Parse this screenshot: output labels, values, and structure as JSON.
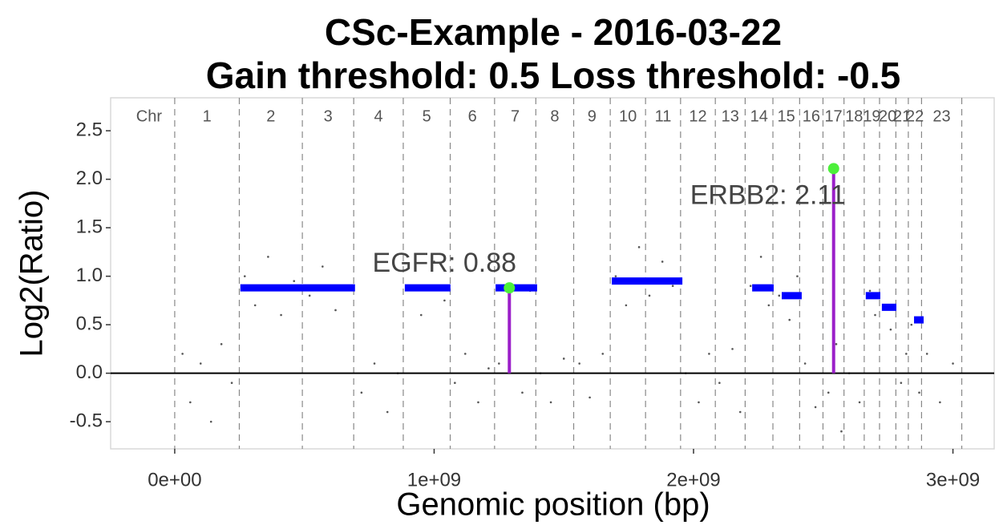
{
  "chart_data": {
    "type": "scatter",
    "title": "CSc-Example - 2016-03-22",
    "subtitle": "Gain threshold:  0.5  Loss threshold: -0.5",
    "x_label": "Genomic position (bp)",
    "y_label": "Log2(Ratio)",
    "xlim": [
      -247000000.0,
      3159000000.0
    ],
    "ylim": [
      -0.78,
      2.84
    ],
    "xticks": [
      {
        "value": 0,
        "label": "0e+00"
      },
      {
        "value": 1000000000.0,
        "label": "1e+09"
      },
      {
        "value": 2000000000.0,
        "label": "2e+09"
      },
      {
        "value": 3000000000.0,
        "label": "3e+09"
      }
    ],
    "yticks": [
      {
        "value": -0.5,
        "label": "-0.5"
      },
      {
        "value": 0,
        "label": "0.0"
      },
      0.5,
      {
        "value": 1,
        "label": "1.0"
      },
      1.5,
      {
        "value": 2,
        "label": "2.0"
      },
      2.5
    ],
    "reference_line": 0,
    "chromosomes": {
      "header": "Chr",
      "names": [
        "1",
        "2",
        "3",
        "4",
        "5",
        "6",
        "7",
        "8",
        "9",
        "10",
        "11",
        "12",
        "13",
        "14",
        "15",
        "16",
        "17",
        "18",
        "19",
        "20",
        "21",
        "22",
        "23"
      ],
      "boundaries": [
        0,
        249000000.0,
        492000000.0,
        690000000.0,
        881000000.0,
        1062000000.0,
        1233000000.0,
        1392000000.0,
        1538000000.0,
        1679000000.0,
        1815000000.0,
        1950000000.0,
        2084000000.0,
        2199000000.0,
        2306000000.0,
        2409000000.0,
        2499000000.0,
        2580000000.0,
        2658000000.0,
        2717000000.0,
        2780000000.0,
        2828000000.0,
        2879000000.0,
        3034000000.0
      ]
    },
    "points": {
      "color": "#555555",
      "x": [
        30000000.0,
        60000000.0,
        100000000.0,
        140000000.0,
        180000000.0,
        220000000.0,
        270000000.0,
        310000000.0,
        360000000.0,
        410000000.0,
        460000000.0,
        520000000.0,
        570000000.0,
        620000000.0,
        670000000.0,
        720000000.0,
        770000000.0,
        820000000.0,
        860000000.0,
        900000000.0,
        950000000.0,
        1000000000.0,
        1040000000.0,
        1080000000.0,
        1120000000.0,
        1170000000.0,
        1210000000.0,
        1250000000.0,
        1300000000.0,
        1340000000.0,
        1370000000.0,
        1410000000.0,
        1450000000.0,
        1500000000.0,
        1560000000.0,
        1600000000.0,
        1650000000.0,
        1700000000.0,
        1740000000.0,
        1790000000.0,
        1830000000.0,
        1880000000.0,
        1920000000.0,
        1970000000.0,
        2020000000.0,
        2060000000.0,
        2100000000.0,
        2150000000.0,
        2180000000.0,
        2220000000.0,
        2260000000.0,
        2290000000.0,
        2330000000.0,
        2370000000.0,
        2400000000.0,
        2430000000.0,
        2470000000.0,
        2520000000.0,
        2550000000.0,
        2570000000.0,
        2600000000.0,
        2640000000.0,
        2680000000.0,
        2700000000.0,
        2740000000.0,
        2760000000.0,
        2800000000.0,
        2820000000.0,
        2840000000.0,
        2870000000.0,
        2900000000.0,
        2950000000.0,
        3000000000.0
      ],
      "y": [
        0.2,
        -0.3,
        0.1,
        -0.5,
        0.3,
        -0.1,
        1.0,
        0.7,
        1.2,
        0.6,
        0.95,
        0.8,
        1.1,
        0.65,
        0.9,
        -0.2,
        0.1,
        -0.4,
        0.0,
        0.9,
        0.6,
        1.15,
        0.75,
        -0.1,
        0.2,
        -0.3,
        0.05,
        0.1,
        0.9,
        -0.2,
        0.85,
        0.0,
        -0.3,
        0.15,
        0.1,
        -0.25,
        0.2,
        1.0,
        0.7,
        1.3,
        0.8,
        1.15,
        0.9,
        0.0,
        -0.3,
        0.2,
        -0.1,
        0.25,
        -0.4,
        0.9,
        1.2,
        0.7,
        0.8,
        0.55,
        1.0,
        0.1,
        -0.35,
        -0.2,
        0.3,
        -0.6,
        0.0,
        -0.3,
        0.85,
        0.6,
        0.7,
        0.45,
        -0.1,
        0.2,
        0.5,
        -0.2,
        0.2,
        -0.3,
        0.1
      ]
    },
    "segments": {
      "color": "#0000ff",
      "start": [
        253000000.0,
        887000000.0,
        1237000000.0,
        1685000000.0,
        2226000000.0,
        2340000000.0,
        2664000000.0,
        2726000000.0,
        2850000000.0
      ],
      "end": [
        695000000.0,
        1063000000.0,
        1397000000.0,
        1957000000.0,
        2309000000.0,
        2417000000.0,
        2720000000.0,
        2782000000.0,
        2887000000.0
      ],
      "values": [
        0.88,
        0.88,
        0.88,
        0.95,
        0.88,
        0.8,
        0.8,
        0.68,
        0.55
      ]
    },
    "genes": {
      "stem_color": "#9b1fc9",
      "point_color": "#4cf03a",
      "labels": [
        "EGFR: 0.88",
        "ERBB2: 2.11"
      ],
      "x": [
        1290000000.0,
        2540000000.0
      ],
      "values": [
        0.88,
        2.11
      ]
    }
  }
}
